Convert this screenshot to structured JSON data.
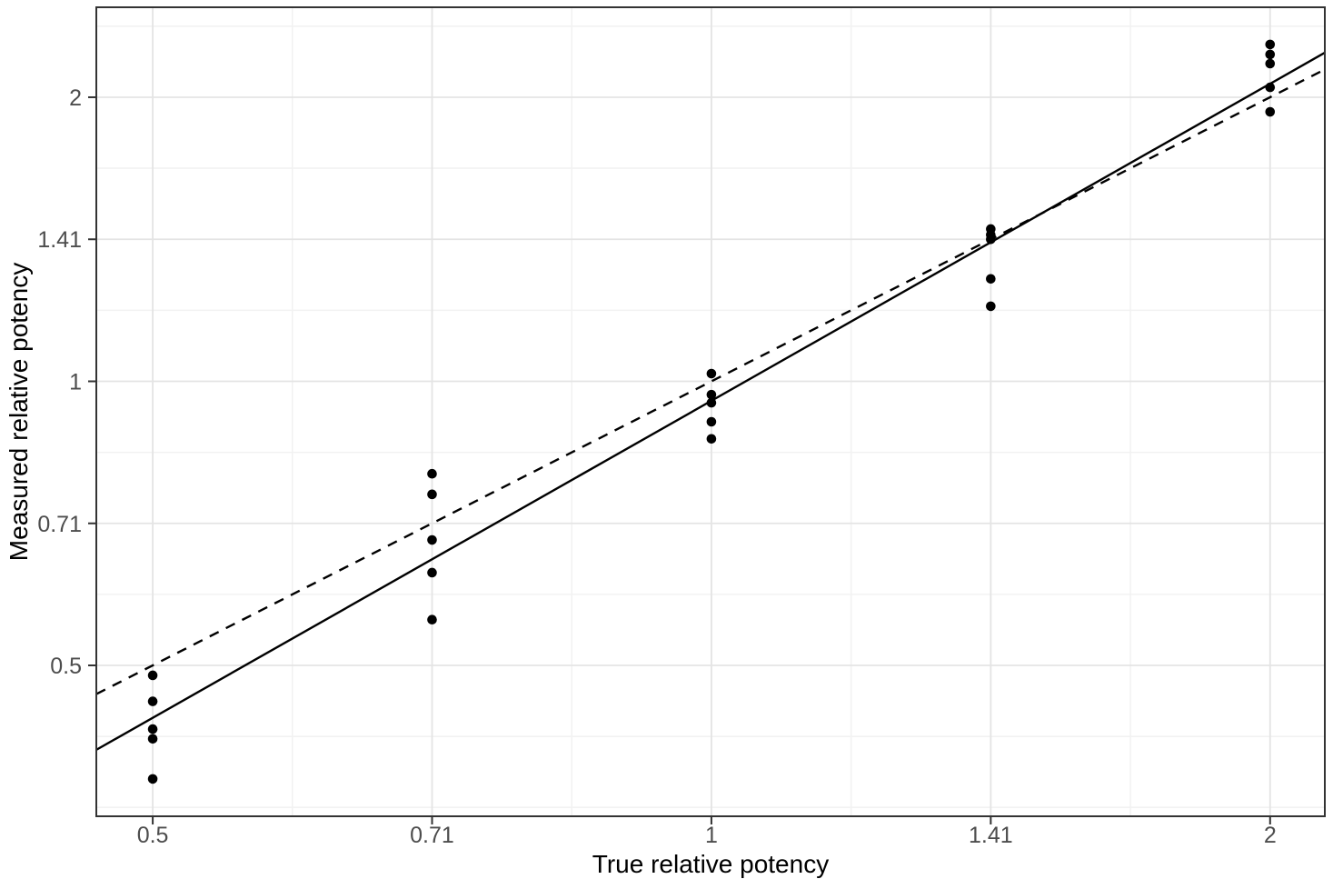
{
  "chart_data": {
    "type": "scatter",
    "xlabel": "True relative potency",
    "ylabel": "Measured relative potency",
    "x_scale": "log2",
    "y_scale": "log2",
    "xlim": [
      0.4662,
      2.1405
    ],
    "ylim": [
      0.346,
      2.491
    ],
    "x_ticks": {
      "values": [
        0.5,
        0.7071,
        1,
        1.4142,
        2
      ],
      "labels": [
        "0.5",
        "0.71",
        "1",
        "1.41",
        "2"
      ]
    },
    "y_ticks": {
      "values": [
        0.5,
        0.7071,
        1,
        1.4142,
        2
      ],
      "labels": [
        "0.5",
        "0.71",
        "1",
        "1.41",
        "2"
      ]
    },
    "x_minor": [
      0.5946,
      0.8409,
      1.1892,
      1.6818
    ],
    "y_minor": [
      0.3536,
      0.4204,
      0.5946,
      0.8409,
      1.1892,
      1.6818,
      2.3784
    ],
    "grid": true,
    "legend": "none",
    "series": [
      {
        "name": "measured-vs-true",
        "marker": "filled-circle",
        "points": [
          [
            0.5,
            0.488
          ],
          [
            0.5,
            0.458
          ],
          [
            0.5,
            0.428
          ],
          [
            0.5,
            0.418
          ],
          [
            0.5,
            0.379
          ],
          [
            0.7071,
            0.798
          ],
          [
            0.7071,
            0.759
          ],
          [
            0.7071,
            0.679
          ],
          [
            0.7071,
            0.627
          ],
          [
            0.7071,
            0.559
          ],
          [
            1,
            1.019
          ],
          [
            1,
            0.968
          ],
          [
            1,
            0.949
          ],
          [
            1,
            0.906
          ],
          [
            1,
            0.869
          ],
          [
            1.4142,
            1.45
          ],
          [
            1.4142,
            1.43
          ],
          [
            1.4142,
            1.414
          ],
          [
            1.4142,
            1.284
          ],
          [
            1.4142,
            1.201
          ],
          [
            2,
            2.275
          ],
          [
            2,
            2.22
          ],
          [
            2,
            2.171
          ],
          [
            2,
            2.049
          ],
          [
            2,
            1.93
          ]
        ]
      }
    ],
    "lines": [
      {
        "name": "identity-line",
        "style": "dashed",
        "slope_log2": 1.0,
        "intercept_log2": 0.0
      },
      {
        "name": "fit-line",
        "style": "solid",
        "slope_log2": 1.116,
        "intercept_log2": -0.0685
      }
    ],
    "colors": {
      "point": "#000000",
      "line": "#000000",
      "panel_border": "#333333",
      "grid_major": "#e4e4e4",
      "grid_minor": "#f2f2f2",
      "tick_mark": "#333333",
      "tick_label": "#4d4d4d",
      "axis_title": "#000000",
      "background": "#ffffff"
    }
  }
}
